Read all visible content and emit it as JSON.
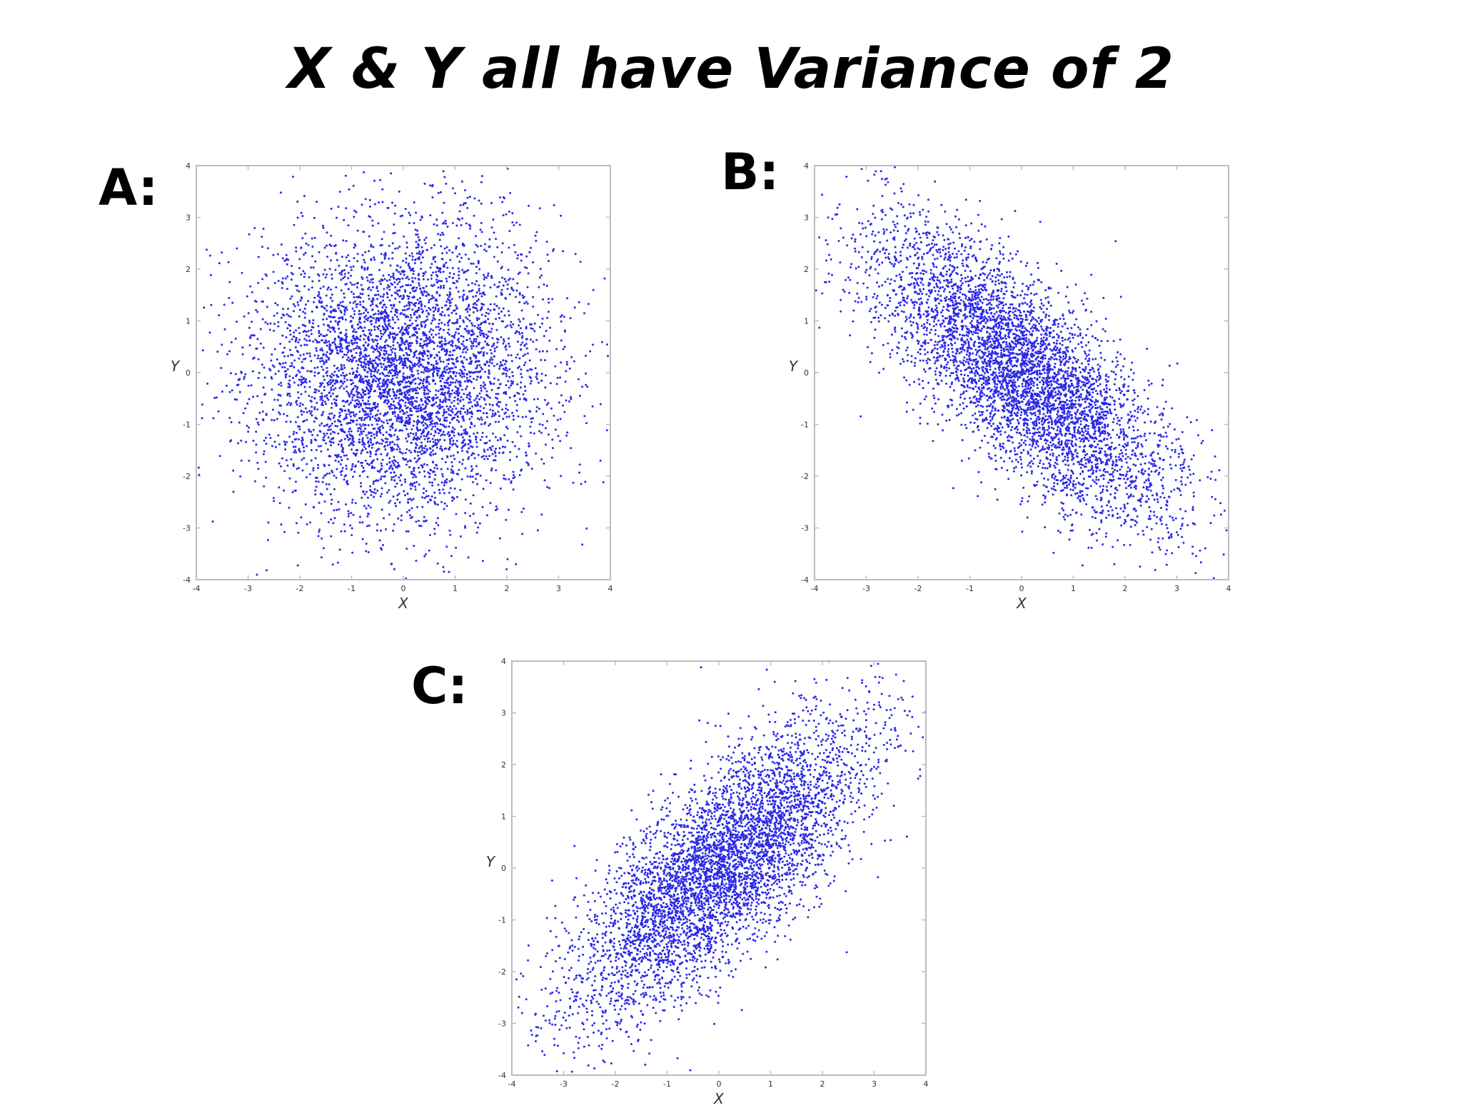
{
  "slide": {
    "title": "X & Y all have Variance of 2"
  },
  "colors": {
    "points": "#2a2ae6",
    "frame": "#bdbdbd",
    "background": "#ffffff"
  },
  "chart_data": [
    {
      "id": "A",
      "panel_label": "A:",
      "type": "scatter",
      "title": "",
      "xlabel": "X",
      "ylabel": "Y",
      "xlim": [
        -4,
        4
      ],
      "ylim": [
        -4,
        4
      ],
      "xticks": [
        "-4",
        "-3",
        "-2",
        "-1",
        "0",
        "1",
        "2",
        "3",
        "4"
      ],
      "yticks": [
        "-4",
        "-3",
        "-2",
        "-1",
        "0",
        "1",
        "2",
        "3",
        "4"
      ],
      "grid": false,
      "legend": "none",
      "distribution": {
        "mean": [
          0,
          0
        ],
        "var_x": 2,
        "var_y": 2,
        "covariance": 0
      },
      "approx_point_count": 5000
    },
    {
      "id": "B",
      "panel_label": "B:",
      "type": "scatter",
      "title": "",
      "xlabel": "X",
      "ylabel": "Y",
      "xlim": [
        -4,
        4
      ],
      "ylim": [
        -4,
        4
      ],
      "xticks": [
        "-4",
        "-3",
        "-2",
        "-1",
        "0",
        "1",
        "2",
        "3",
        "4"
      ],
      "yticks": [
        "-4",
        "-3",
        "-2",
        "-1",
        "0",
        "1",
        "2",
        "3",
        "4"
      ],
      "grid": false,
      "legend": "none",
      "distribution": {
        "mean": [
          0,
          0
        ],
        "var_x": 2,
        "var_y": 2,
        "covariance": -1.5
      },
      "approx_point_count": 5000
    },
    {
      "id": "C",
      "panel_label": "C:",
      "type": "scatter",
      "title": "",
      "xlabel": "X",
      "ylabel": "Y",
      "xlim": [
        -4,
        4
      ],
      "ylim": [
        -4,
        4
      ],
      "xticks": [
        "-4",
        "-3",
        "-2",
        "-1",
        "0",
        "1",
        "2",
        "3",
        "4"
      ],
      "yticks": [
        "-4",
        "-3",
        "-2",
        "-1",
        "0",
        "1",
        "2",
        "3",
        "4"
      ],
      "grid": false,
      "legend": "none",
      "distribution": {
        "mean": [
          0,
          0
        ],
        "var_x": 2,
        "var_y": 2,
        "covariance": 1.5
      },
      "approx_point_count": 5000
    }
  ]
}
